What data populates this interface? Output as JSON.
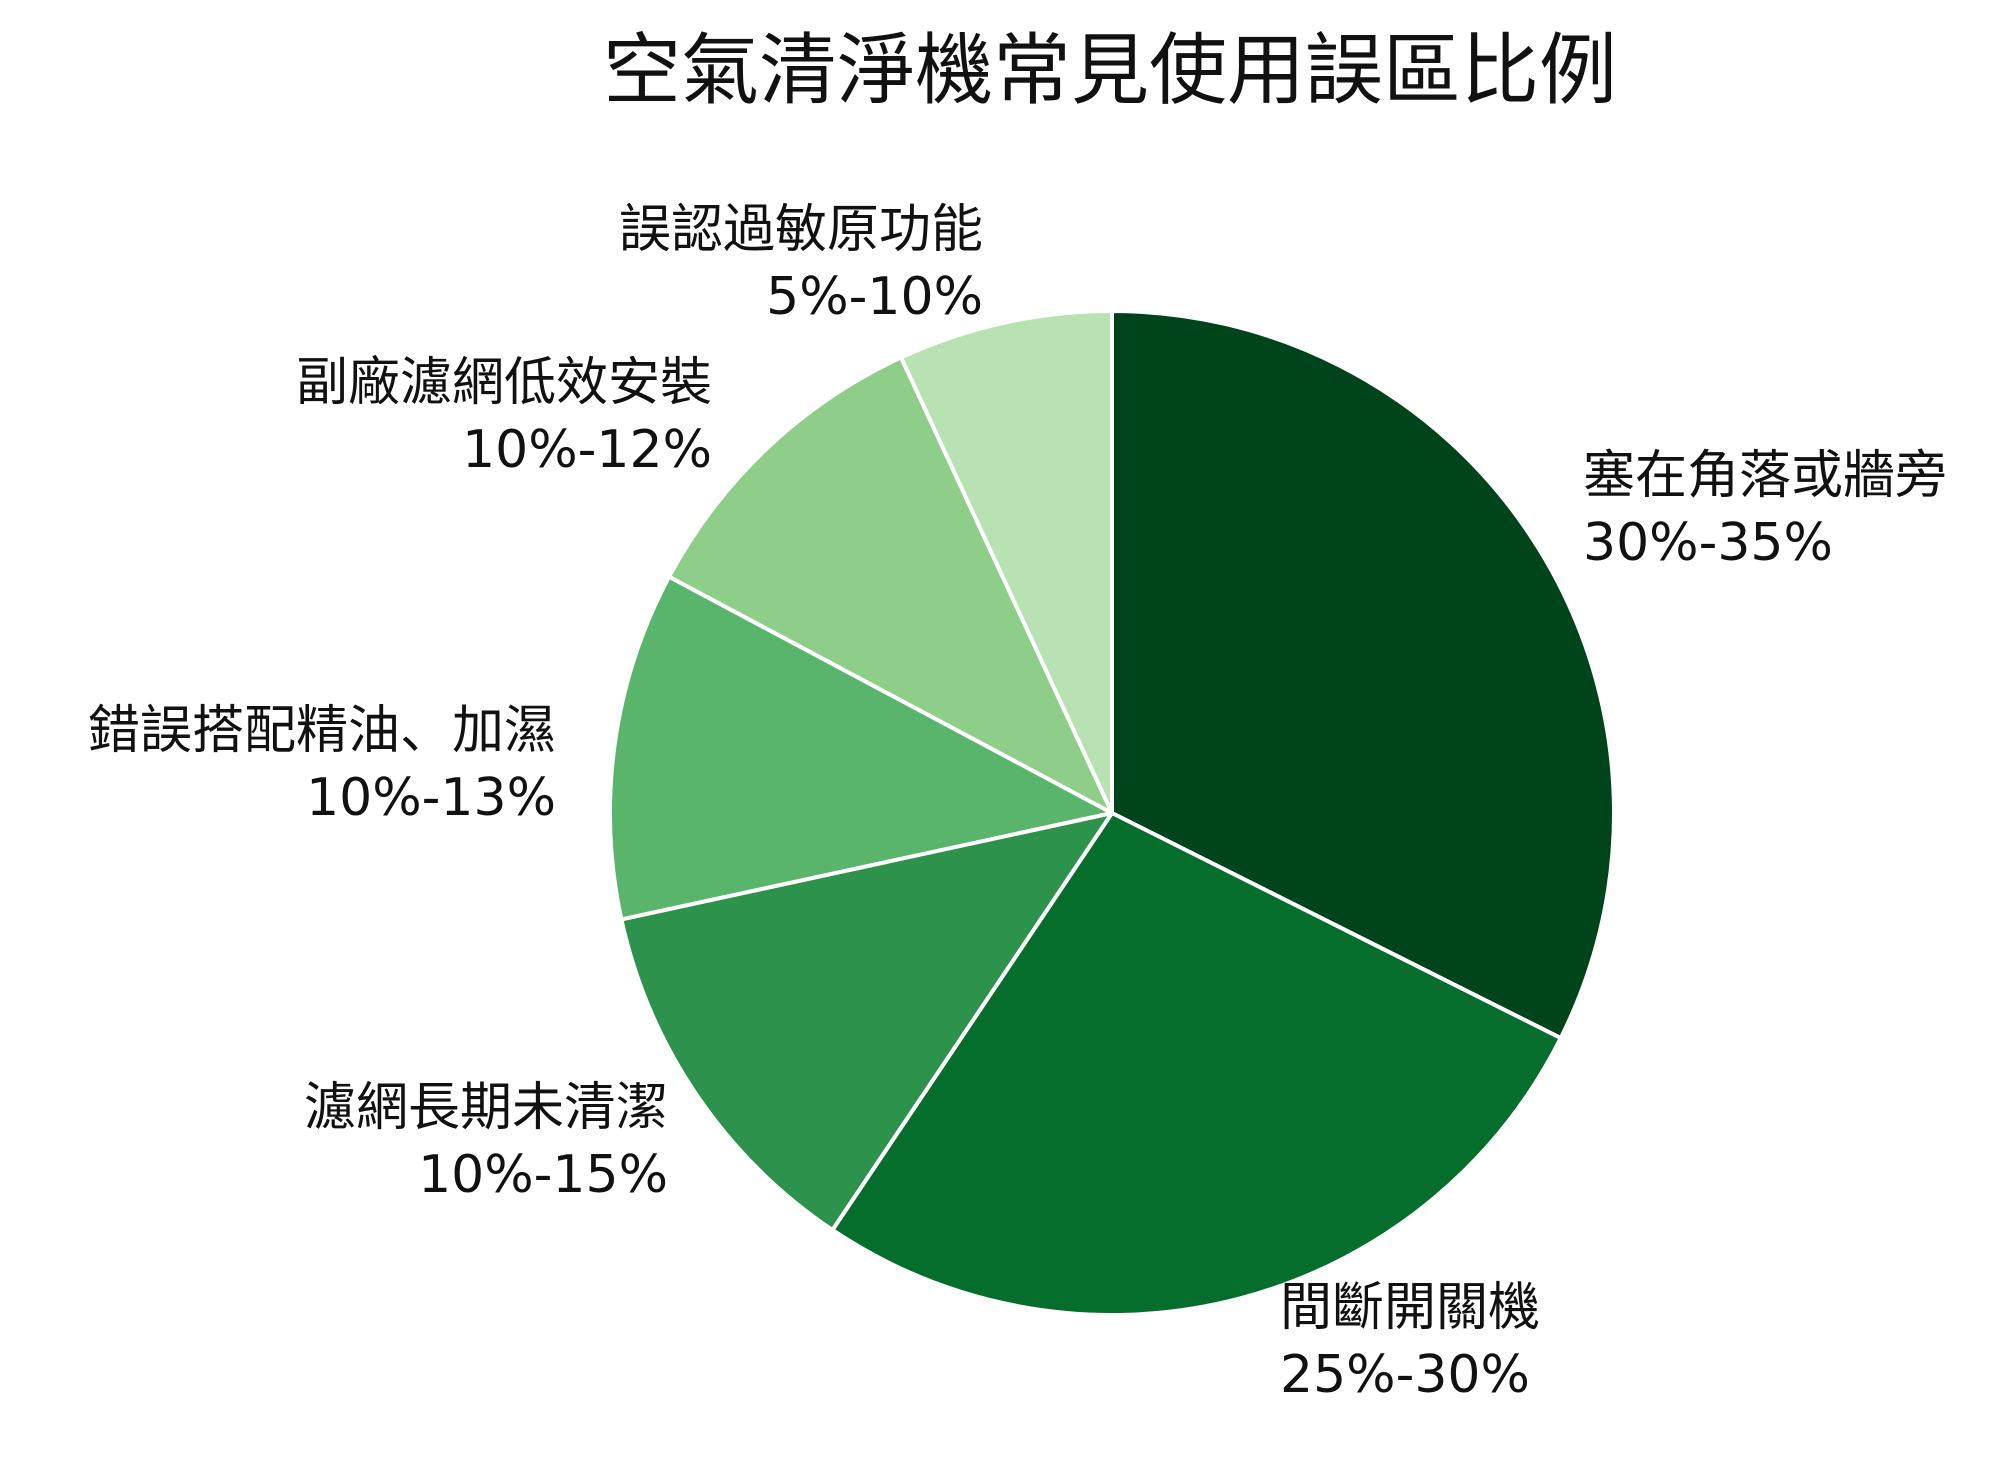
{
  "chart_data": {
    "type": "pie",
    "title": "空氣清淨機常見使用誤區比例",
    "start_angle_deg": 0,
    "direction": "clockwise",
    "slices": [
      {
        "label": "塞在角落或牆旁",
        "range_text": "30%-35%",
        "value": 32.4,
        "color": "#00441b"
      },
      {
        "label": "間斷開關機",
        "range_text": "25%-30%",
        "value": 27.0,
        "color": "#056e2d"
      },
      {
        "label": "濾網長期未清潔",
        "range_text": "10%-15%",
        "value": 12.2,
        "color": "#2d924b"
      },
      {
        "label": "錯誤搭配精油、加濕",
        "range_text": "10%-13%",
        "value": 11.2,
        "color": "#58b56b"
      },
      {
        "label": "副廠濾網低效安裝",
        "range_text": "10%-12%",
        "value": 10.3,
        "color": "#8ece88"
      },
      {
        "label": "誤認過敏原功能",
        "range_text": "5%-10%",
        "value": 6.9,
        "color": "#b8e2b1"
      }
    ]
  }
}
